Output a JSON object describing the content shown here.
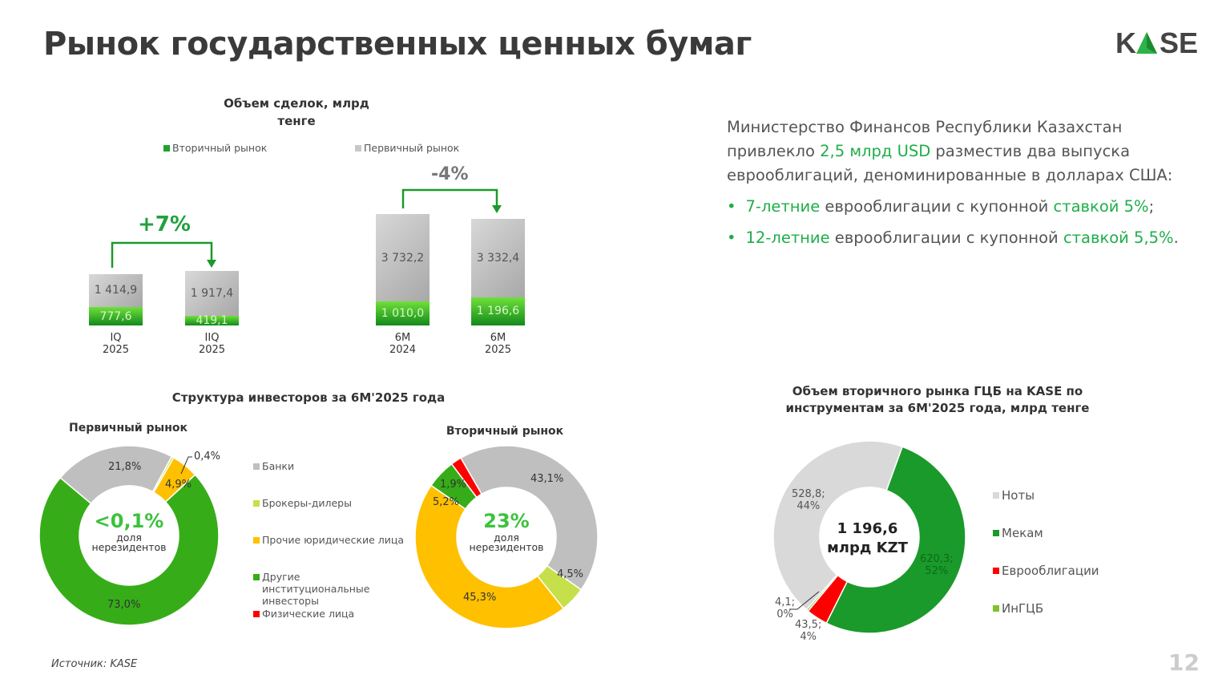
{
  "title": "Рынок государственных ценных бумаг",
  "logo": "KASE",
  "source": "Источник:  KASE",
  "page": "12",
  "info": {
    "line1": "Министерство Финансов Республики Казахстан",
    "line2_a": "привлекло ",
    "line2_b": "2,5 млрд USD",
    "line2_c": " разместив два выпуска",
    "line3": "еврооблигаций, деноминированные в долларах США:",
    "bullets": [
      {
        "a": "7-летние",
        "b": " еврооблигации с купонной ",
        "c": "ставкой 5%",
        "d": ";"
      },
      {
        "a": "12-летние",
        "b": " еврооблигации с купонной ",
        "c": "ставкой 5,5%",
        "d": "."
      }
    ]
  },
  "colors": {
    "secondary": "#1fa32a",
    "primary": "#b5b5b5",
    "accent": "#1fae4a"
  },
  "chart_data": [
    {
      "type": "bar",
      "stacked": true,
      "title": "Объем сделок, млрд тенге",
      "legend": [
        "Вторичный рынок",
        "Первичный рынок"
      ],
      "categories": [
        [
          "IQ",
          "2025"
        ],
        [
          "IIQ",
          "2025"
        ],
        [
          "6M",
          "2024"
        ],
        [
          "6M",
          "2025"
        ]
      ],
      "series": [
        {
          "name": "Вторичный рынок",
          "values": [
            777.6,
            419.1,
            1010.0,
            1196.6
          ],
          "labels": [
            "777,6",
            "419,1",
            "1 010,0",
            "1 196,6"
          ]
        },
        {
          "name": "Первичный рынок",
          "values": [
            1414.9,
            1917.4,
            3732.2,
            3332.4
          ],
          "labels": [
            "1 414,9",
            "1 917,4",
            "3 732,2",
            "3 332,4"
          ]
        }
      ],
      "changes": [
        "+7%",
        "-4%"
      ]
    },
    {
      "type": "pie",
      "title": "Структура инвесторов за 6М'2025 года",
      "subtitle": "Первичный рынок",
      "center_value": "<0,1%",
      "center_label": "доля нерезидентов",
      "slices": [
        {
          "name": "Банки",
          "value": 21.8,
          "label": "21,8%",
          "color": "#bfbfbf"
        },
        {
          "name": "Брокеры-дилеры",
          "value": 0.4,
          "label": "0,4%",
          "color": "#c5e04a"
        },
        {
          "name": "Прочие юридические лица",
          "value": 4.9,
          "label": "4,9%",
          "color": "#ffc000"
        },
        {
          "name": "Другие институциональные инвесторы",
          "value": 73.0,
          "label": "73,0%",
          "color": "#36ad18"
        },
        {
          "name": "Физические лица",
          "value": 0,
          "label": "",
          "color": "#ff0000"
        }
      ]
    },
    {
      "type": "pie",
      "subtitle": "Вторичный рынок",
      "center_value": "23%",
      "center_label": "доля нерезидентов",
      "slices": [
        {
          "name": "Банки",
          "value": 43.1,
          "label": "43,1%",
          "color": "#bfbfbf"
        },
        {
          "name": "Брокеры-дилеры",
          "value": 4.5,
          "label": "4,5%",
          "color": "#c5e04a"
        },
        {
          "name": "Прочие юридические лица",
          "value": 45.3,
          "label": "45,3%",
          "color": "#ffc000"
        },
        {
          "name": "Другие институциональные инвесторы",
          "value": 5.2,
          "label": "5,2%",
          "color": "#36ad18"
        },
        {
          "name": "Физические лица",
          "value": 1.9,
          "label": "1,9%",
          "color": "#ff0000"
        }
      ]
    },
    {
      "type": "pie",
      "title": "Объем вторичного рынка ГЦБ на KASE по инструментам за 6М'2025 года, млрд тенге",
      "center_value": "1 196,6",
      "center_label": "млрд KZT",
      "slices": [
        {
          "name": "Мекам",
          "value": 620.3,
          "label": "620,3;",
          "pct": "52%",
          "color": "#1a9a2a"
        },
        {
          "name": "Еврооблигации",
          "value": 43.5,
          "label": "43,5;",
          "pct": "4%",
          "color": "#ff0000"
        },
        {
          "name": "ИнГЦБ",
          "value": 4.1,
          "label": "4,1;",
          "pct": "0%",
          "color": "#7dc42a"
        },
        {
          "name": "Ноты",
          "value": 528.8,
          "label": "528,8;",
          "pct": "44%",
          "color": "#d9d9d9"
        }
      ],
      "legend": [
        "Ноты",
        "Мекам",
        "Еврооблигации",
        "ИнГЦБ"
      ]
    }
  ]
}
